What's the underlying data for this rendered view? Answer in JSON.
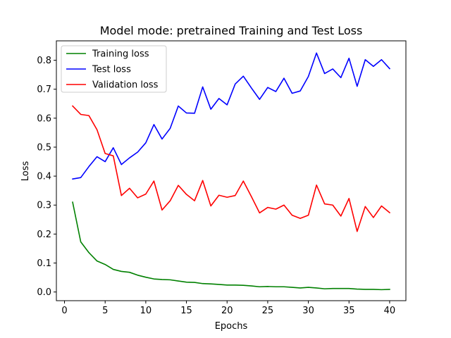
{
  "chart_data": {
    "type": "line",
    "title": "Model mode: pretrained Training and Test Loss",
    "xlabel": "Epochs",
    "ylabel": "Loss",
    "xlim": [
      -1,
      42
    ],
    "ylim": [
      -0.03,
      0.867
    ],
    "xticks": [
      0,
      5,
      10,
      15,
      20,
      25,
      30,
      35,
      40
    ],
    "yticks": [
      0.0,
      0.1,
      0.2,
      0.3,
      0.4,
      0.5,
      0.6,
      0.7,
      0.8
    ],
    "xtick_labels": [
      "0",
      "5",
      "10",
      "15",
      "20",
      "25",
      "30",
      "35",
      "40"
    ],
    "ytick_labels": [
      "0.0",
      "0.1",
      "0.2",
      "0.3",
      "0.4",
      "0.5",
      "0.6",
      "0.7",
      "0.8"
    ],
    "grid": false,
    "legend_position": "upper-left",
    "x": [
      1,
      2,
      3,
      4,
      5,
      6,
      7,
      8,
      9,
      10,
      11,
      12,
      13,
      14,
      15,
      16,
      17,
      18,
      19,
      20,
      21,
      22,
      23,
      24,
      25,
      26,
      27,
      28,
      29,
      30,
      31,
      32,
      33,
      34,
      35,
      36,
      37,
      38,
      39,
      40
    ],
    "series": [
      {
        "name": "Training loss",
        "color": "#008000",
        "values": [
          0.31,
          0.173,
          0.136,
          0.107,
          0.095,
          0.078,
          0.071,
          0.068,
          0.058,
          0.051,
          0.045,
          0.043,
          0.042,
          0.038,
          0.034,
          0.033,
          0.029,
          0.028,
          0.026,
          0.024,
          0.024,
          0.023,
          0.021,
          0.018,
          0.019,
          0.018,
          0.018,
          0.016,
          0.014,
          0.016,
          0.014,
          0.011,
          0.012,
          0.012,
          0.012,
          0.01,
          0.009,
          0.009,
          0.008,
          0.009
        ]
      },
      {
        "name": "Test loss",
        "color": "#0000ff",
        "values": [
          0.39,
          0.395,
          0.433,
          0.467,
          0.45,
          0.498,
          0.44,
          0.463,
          0.483,
          0.515,
          0.578,
          0.528,
          0.565,
          0.642,
          0.618,
          0.617,
          0.708,
          0.631,
          0.668,
          0.646,
          0.718,
          0.745,
          0.704,
          0.665,
          0.706,
          0.692,
          0.738,
          0.686,
          0.694,
          0.744,
          0.825,
          0.754,
          0.77,
          0.74,
          0.807,
          0.71,
          0.802,
          0.779,
          0.802,
          0.771
        ]
      },
      {
        "name": "Validation loss",
        "color": "#ff0000",
        "values": [
          0.642,
          0.613,
          0.609,
          0.56,
          0.478,
          0.47,
          0.333,
          0.358,
          0.325,
          0.338,
          0.383,
          0.283,
          0.315,
          0.368,
          0.337,
          0.315,
          0.385,
          0.297,
          0.334,
          0.327,
          0.333,
          0.383,
          0.329,
          0.273,
          0.292,
          0.286,
          0.3,
          0.265,
          0.254,
          0.265,
          0.369,
          0.304,
          0.3,
          0.262,
          0.323,
          0.209,
          0.295,
          0.257,
          0.297,
          0.274
        ]
      }
    ]
  }
}
